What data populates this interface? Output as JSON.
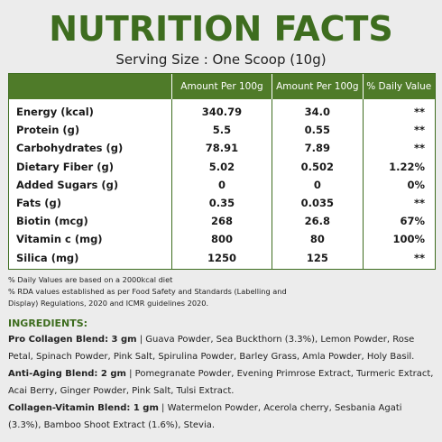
{
  "title": "NUTRITION FACTS",
  "serving": "Serving Size : One Scoop (10g)",
  "table": {
    "headers": [
      "",
      "Amount Per 100g",
      "Amount Per 100g",
      "% Daily Value"
    ],
    "rows": [
      {
        "name": "Energy (kcal)",
        "per100": "340.79",
        "perServe": "34.0",
        "dv": "**"
      },
      {
        "name": "Protein (g)",
        "per100": "5.5",
        "perServe": "0.55",
        "dv": "**"
      },
      {
        "name": "Carbohydrates (g)",
        "per100": "78.91",
        "perServe": "7.89",
        "dv": "**"
      },
      {
        "name": "Dietary Fiber (g)",
        "per100": "5.02",
        "perServe": "0.502",
        "dv": "1.22%"
      },
      {
        "name": "Added Sugars (g)",
        "per100": "0",
        "perServe": "0",
        "dv": "0%"
      },
      {
        "name": "Fats (g)",
        "per100": "0.35",
        "perServe": "0.035",
        "dv": "**"
      },
      {
        "name": "Biotin (mcg)",
        "per100": "268",
        "perServe": "26.8",
        "dv": "67%"
      },
      {
        "name": "Vitamin c (mg)",
        "per100": "800",
        "perServe": "80",
        "dv": "100%"
      },
      {
        "name": "Silica (mg)",
        "per100": "1250",
        "perServe": "125",
        "dv": "**"
      }
    ]
  },
  "notes": [
    "% Daily Values are based on a 2000kcal diet",
    "% RDA values established as per Food Safety and Standards (Labelling and",
    "Display) Regulations, 2020 and ICMR guidelines 2020."
  ],
  "ingredients_heading": "INGREDIENTS:",
  "blends": [
    {
      "name": "Pro Collagen Blend: 3 gm",
      "line1": " | Guava Powder, Sea Buckthorn (3.3%), Lemon Powder, Rose",
      "line2": "Petal, Spinach Powder, Pink Salt, Spirulina Powder, Barley Grass, Amla Powder, Holy Basil."
    },
    {
      "name": "Anti-Aging Blend: 2 gm",
      "line1": " | Pomegranate Powder, Evening Primrose Extract, Turmeric Extract,",
      "line2": "Acai Berry, Ginger Powder, Pink Salt, Tulsi Extract."
    },
    {
      "name": "Collagen-Vitamin Blend: 1 gm",
      "line1": " | Watermelon Powder, Acerola cherry, Sesbania Agati",
      "line2": "(3.3%), Bamboo Shoot Extract (1.6%), Stevia."
    }
  ]
}
